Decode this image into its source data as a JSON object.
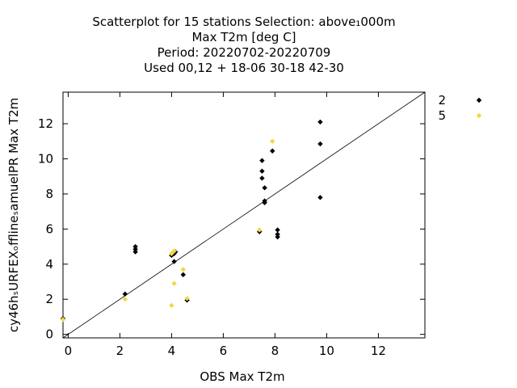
{
  "chart_data": {
    "type": "scatter",
    "title_lines": [
      "Scatterplot for   15 stations Selection: above₁000m",
      "Max T2m [deg C]",
      "Period: 20220702-20220709",
      "Used  00,12  + 18-06 30-18 42-30"
    ],
    "xlabel": "OBS Max T2m",
    "ylabel": "cy46hₛURFEXₒfflineₛamuelPR Max T2m",
    "xlim": [
      -0.2,
      13.8
    ],
    "ylim": [
      -0.2,
      13.8
    ],
    "xticks": [
      0,
      2,
      4,
      6,
      8,
      10,
      12
    ],
    "yticks": [
      0,
      2,
      4,
      6,
      8,
      10,
      12
    ],
    "reference_line": "y = x",
    "legend_position": "top-right",
    "series": [
      {
        "name": "2",
        "color": "#000000",
        "marker": "diamond",
        "points": [
          [
            -0.2,
            0.9
          ],
          [
            2.2,
            2.3
          ],
          [
            2.6,
            4.7
          ],
          [
            2.6,
            4.85
          ],
          [
            2.6,
            5.0
          ],
          [
            4.0,
            4.5
          ],
          [
            4.1,
            4.6
          ],
          [
            4.15,
            4.7
          ],
          [
            4.1,
            4.15
          ],
          [
            4.45,
            3.4
          ],
          [
            4.6,
            1.95
          ],
          [
            7.4,
            5.85
          ],
          [
            7.5,
            9.9
          ],
          [
            7.5,
            9.3
          ],
          [
            7.5,
            8.9
          ],
          [
            7.6,
            8.35
          ],
          [
            7.6,
            7.6
          ],
          [
            7.6,
            7.5
          ],
          [
            7.9,
            10.45
          ],
          [
            8.1,
            5.95
          ],
          [
            8.1,
            5.7
          ],
          [
            8.1,
            5.55
          ],
          [
            9.75,
            12.1
          ],
          [
            9.75,
            10.85
          ],
          [
            9.75,
            7.8
          ]
        ]
      },
      {
        "name": "5",
        "color": "#f0d848",
        "marker": "diamond",
        "points": [
          [
            -0.2,
            0.85
          ],
          [
            2.2,
            2.0
          ],
          [
            4.0,
            4.6
          ],
          [
            4.1,
            4.75
          ],
          [
            4.1,
            2.9
          ],
          [
            4.0,
            1.65
          ],
          [
            4.45,
            3.7
          ],
          [
            4.6,
            2.05
          ],
          [
            7.4,
            5.95
          ],
          [
            7.9,
            11.0
          ]
        ]
      }
    ]
  }
}
